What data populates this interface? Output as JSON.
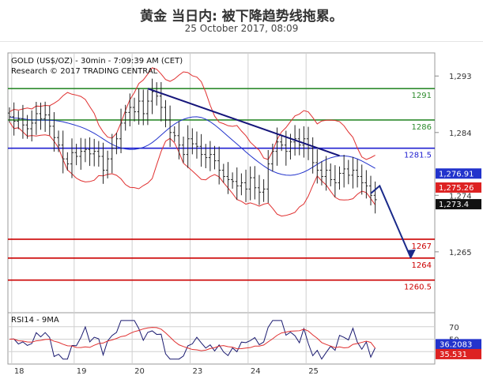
{
  "page": {
    "title": "黄金 当日内: 被下降趋势线拖累。",
    "date": "25 October 2017, 08:09"
  },
  "chart_data": [
    {
      "type": "candlestick",
      "header": [
        "GOLD (US$/OZ) - 30min - 7:09:39 AM (CET)",
        "Research © 2017 TRADING CENTRAL"
      ],
      "y_ticks": [
        {
          "value": 1293,
          "label": "1,293"
        },
        {
          "value": 1284,
          "label": "1,284"
        },
        {
          "value": 1274,
          "label": "1,274"
        },
        {
          "value": 1265,
          "label": "1,265"
        }
      ],
      "x_ticks": [
        {
          "bar": 6,
          "label": "18"
        },
        {
          "bar": 20,
          "label": "19"
        },
        {
          "bar": 33,
          "label": "20"
        },
        {
          "bar": 46,
          "label": "23"
        },
        {
          "bar": 59,
          "label": "24"
        },
        {
          "bar": 72,
          "label": "25"
        }
      ],
      "ylim": [
        1255.3,
        1296.3
      ],
      "levels": [
        {
          "label": "1291",
          "value": 1291,
          "color": "#2e8b2e"
        },
        {
          "label": "1286",
          "value": 1286,
          "color": "#2e8b2e"
        },
        {
          "label": "1281.5",
          "value": 1281.5,
          "color": "#2020d0"
        },
        {
          "label": "1267",
          "value": 1267,
          "color": "#cc0000"
        },
        {
          "label": "1264",
          "value": 1264,
          "color": "#cc0000"
        },
        {
          "label": "1260.5",
          "value": 1260.5,
          "color": "#cc0000"
        }
      ],
      "price_tags": [
        {
          "label": "1,276.91",
          "value": 1276.9,
          "color": "#2233cc"
        },
        {
          "label": "1,275.26",
          "value": 1275.3,
          "color": "#dd2222"
        },
        {
          "label": "1,273.4",
          "value": 1273.4,
          "color": "#111111"
        }
      ],
      "close": [
        1286.5,
        1285.8,
        1286.2,
        1285.2,
        1284.6,
        1285.5,
        1287.0,
        1286.2,
        1286.8,
        1285.0,
        1283.2,
        1282.0,
        1279.8,
        1279.0,
        1280.8,
        1280.2,
        1281.0,
        1281.3,
        1280.6,
        1281.0,
        1280.2,
        1278.0,
        1279.8,
        1281.5,
        1283.0,
        1285.5,
        1287.2,
        1288.0,
        1287.3,
        1289.0,
        1287.0,
        1289.0,
        1290.5,
        1289.8,
        1288.0,
        1286.0,
        1284.0,
        1283.5,
        1282.0,
        1280.5,
        1283.0,
        1282.2,
        1281.8,
        1280.5,
        1280.0,
        1280.5,
        1279.5,
        1278.0,
        1277.0,
        1276.5,
        1276.2,
        1275.5,
        1276.0,
        1275.0,
        1276.8,
        1275.2,
        1274.5,
        1275.0,
        1279.0,
        1281.0,
        1282.5,
        1282.0,
        1281.0,
        1282.5,
        1283.0,
        1282.0,
        1283.0,
        1281.5,
        1279.2,
        1278.0,
        1277.0,
        1278.0,
        1276.5,
        1276.0,
        1277.5,
        1278.2,
        1277.2,
        1278.0,
        1277.0,
        1276.0,
        1275.5,
        1274.0,
        1273.3
      ],
      "trendline": {
        "from": {
          "bar": 31,
          "value": 1291.0
        },
        "to": {
          "bar": 74,
          "value": 1280.3
        }
      },
      "forecast": [
        {
          "bar": 81,
          "value": 1274.3
        },
        {
          "bar": 83,
          "value": 1275.5
        },
        {
          "bar": 90,
          "value": 1264.0
        }
      ],
      "indicator": {
        "label": "RSI14 - 9MA",
        "ticks": [
          70,
          50,
          30
        ],
        "value_tags": [
          {
            "label": "36.2083",
            "value": 36.2,
            "color": "#2233cc"
          },
          {
            "label": "35.531",
            "value": 35.5,
            "color": "#dd2222"
          }
        ]
      }
    }
  ]
}
